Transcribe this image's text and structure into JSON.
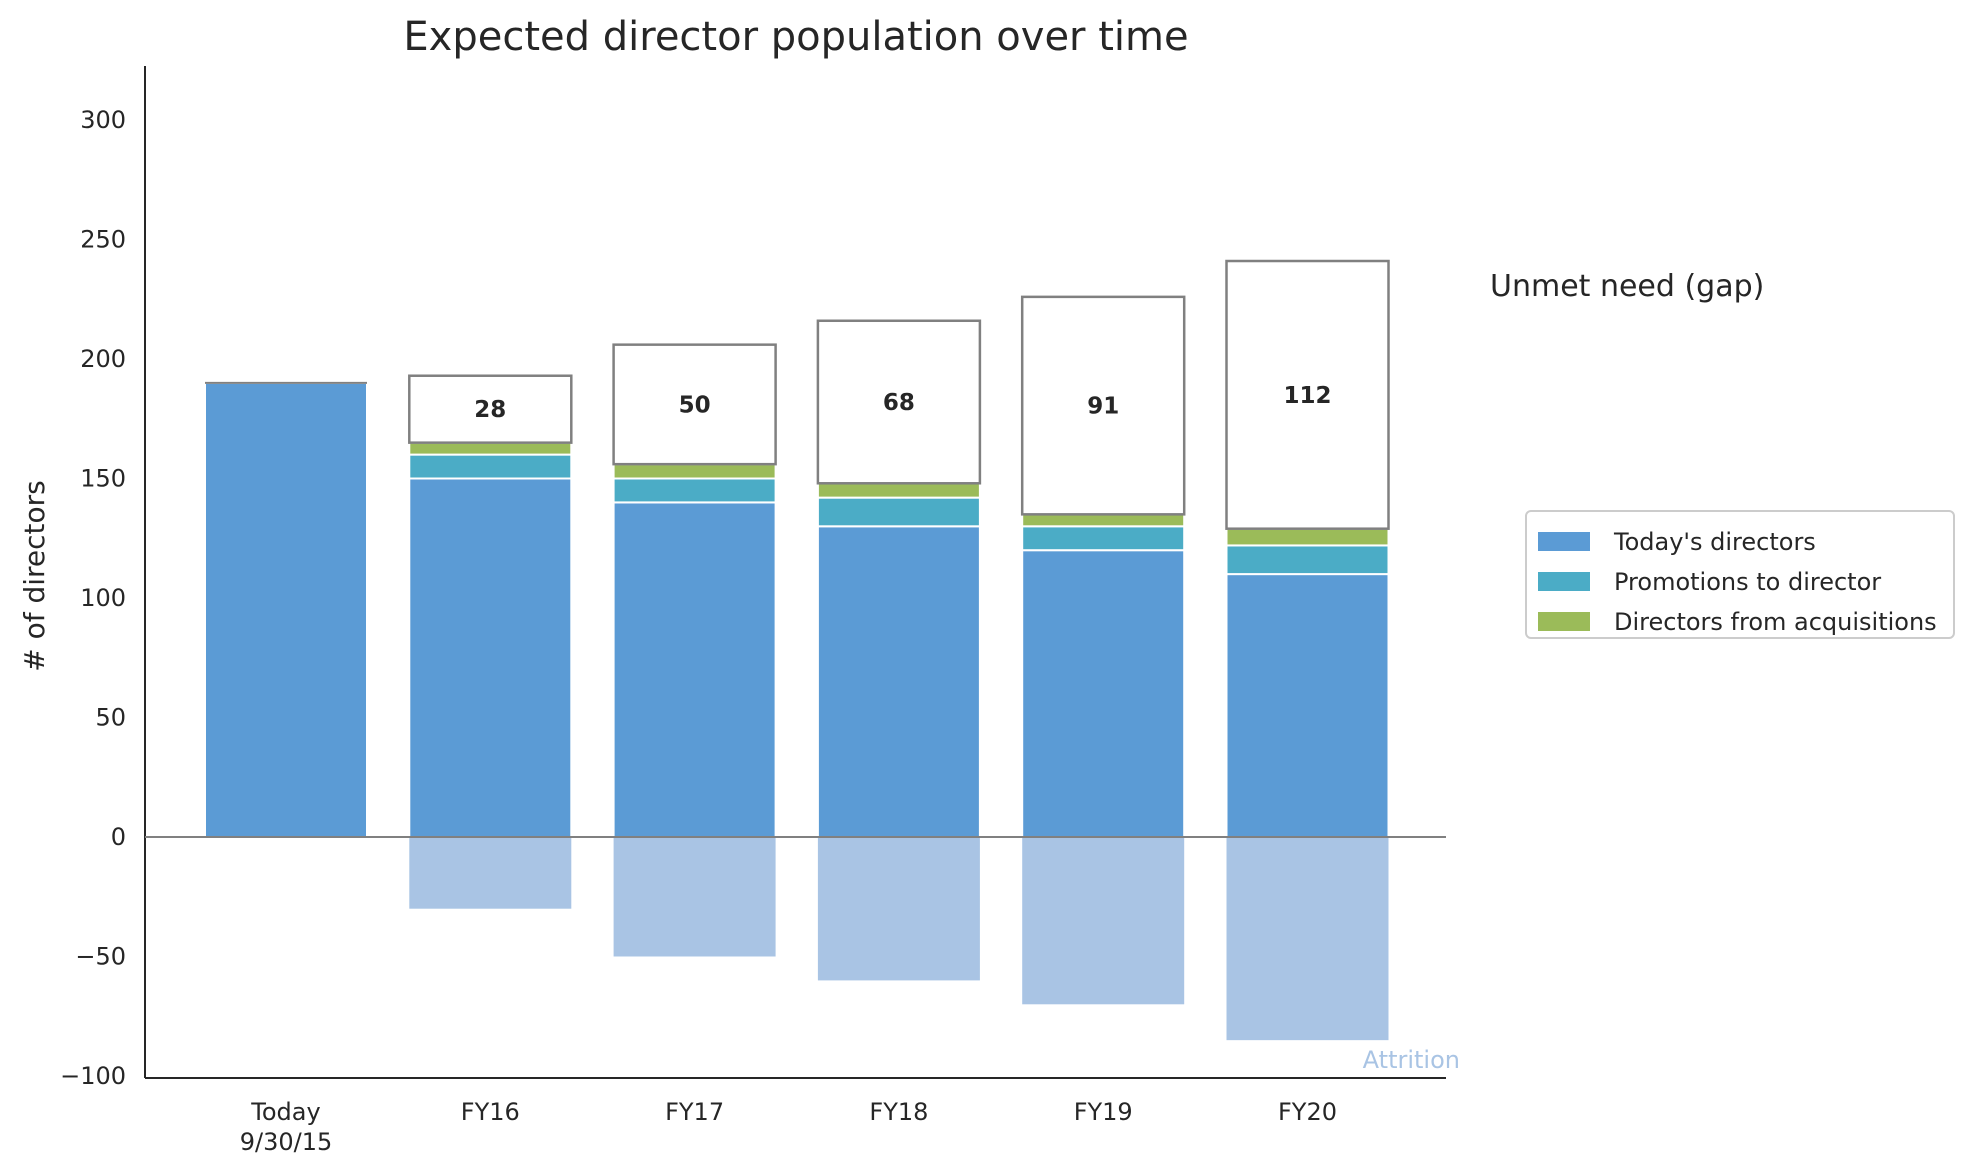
{
  "chart_data": {
    "type": "bar",
    "title": "Expected director population over time",
    "ylabel": "# of directors",
    "xlabel": "",
    "ylim": [
      -100,
      320
    ],
    "yticks": [
      {
        "value": -100,
        "label": "−100"
      },
      {
        "value": -50,
        "label": "−50"
      },
      {
        "value": 0,
        "label": "0"
      },
      {
        "value": 50,
        "label": "50"
      },
      {
        "value": 100,
        "label": "100"
      },
      {
        "value": 150,
        "label": "150"
      },
      {
        "value": 200,
        "label": "200"
      },
      {
        "value": 250,
        "label": "250"
      },
      {
        "value": 300,
        "label": "300"
      }
    ],
    "categories": [
      "Today\n9/30/15",
      "FY16",
      "FY17",
      "FY18",
      "FY19",
      "FY20"
    ],
    "category_lines": [
      [
        "Today",
        "9/30/15"
      ],
      [
        "FY16"
      ],
      [
        "FY17"
      ],
      [
        "FY18"
      ],
      [
        "FY19"
      ],
      [
        "FY20"
      ]
    ],
    "series": [
      {
        "name": "Today's directors",
        "color": "#5b9bd5",
        "values": [
          190,
          150,
          140,
          130,
          120,
          110
        ]
      },
      {
        "name": "Promotions to director",
        "color": "#4bacc6",
        "values": [
          0,
          10,
          10,
          12,
          10,
          12
        ]
      },
      {
        "name": "Directors from acquisitions",
        "color": "#9bbb59",
        "values": [
          0,
          5,
          6,
          6,
          5,
          7
        ]
      },
      {
        "name": "Unmet need (gap)",
        "values": [
          0,
          28,
          50,
          68,
          91,
          112
        ]
      },
      {
        "name": "Attrition",
        "color": "#a9c4e4",
        "values": [
          0,
          -30,
          -50,
          -60,
          -70,
          -85
        ]
      }
    ],
    "gap_labels": [
      "",
      "28",
      "50",
      "68",
      "91",
      "112"
    ],
    "gap_label_text": "Unmet need (gap)",
    "attrition_label": "Attrition",
    "legend": {
      "placement": "right",
      "entries": [
        {
          "label": "Today's directors",
          "color": "#5b9bd5"
        },
        {
          "label": "Promotions to director",
          "color": "#4bacc6"
        },
        {
          "label": "Directors from acquisitions",
          "color": "#9bbb59"
        }
      ]
    },
    "grid": false
  }
}
